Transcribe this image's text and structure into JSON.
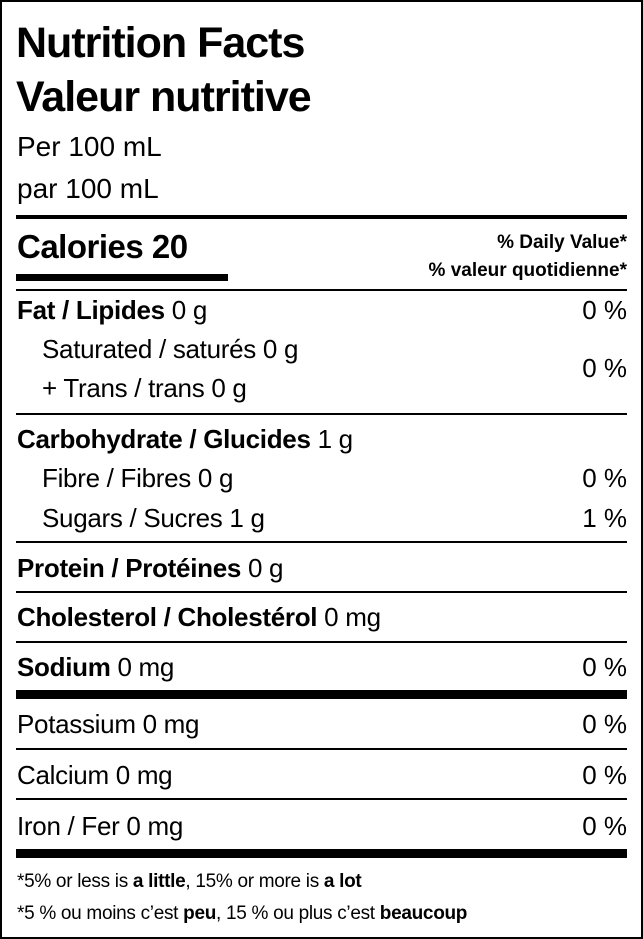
{
  "header": {
    "title": [
      "Nutrition Facts",
      "Valeur nutritive"
    ],
    "serving": [
      "Per 100 mL",
      "par 100 mL"
    ]
  },
  "calories": "Calories 20",
  "daily_value_header": [
    "% Daily Value*",
    "% valeur quotidienne*"
  ],
  "rows": [
    {
      "bold": "Fat / Lipides",
      "amount": "0 g",
      "dv": "0 %"
    },
    {
      "lines": [
        "Saturated / saturés 0 g",
        "+ Trans / trans 0 g"
      ],
      "dv": "0 %"
    },
    {
      "bold": "Carbohydrate / Glucides",
      "amount": "1 g"
    },
    {
      "text": "Fibre / Fibres 0 g",
      "dv": "0 %"
    },
    {
      "text": "Sugars / Sucres 1 g",
      "dv": "1 %"
    },
    {
      "bold": "Protein / Protéines",
      "amount": "0 g"
    },
    {
      "bold": "Cholesterol / Cholestérol",
      "amount": "0 mg"
    },
    {
      "bold": "Sodium",
      "amount": "0 mg",
      "dv": "0 %"
    },
    {
      "text": "Potassium 0 mg",
      "dv": "0 %"
    },
    {
      "text": "Calcium 0 mg",
      "dv": "0 %"
    },
    {
      "text": "Iron / Fer 0 mg",
      "dv": "0 %"
    }
  ],
  "footnote": [
    [
      "*5% or less is ",
      "a little",
      ", 15% or more is ",
      "a lot"
    ],
    [
      "*5 % ou moins c’est ",
      "peu",
      ", 15 % ou plus c’est ",
      "beaucoup"
    ]
  ]
}
